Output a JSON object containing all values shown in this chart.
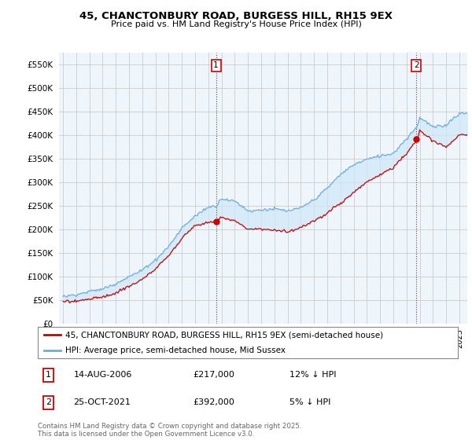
{
  "title": "45, CHANCTONBURY ROAD, BURGESS HILL, RH15 9EX",
  "subtitle": "Price paid vs. HM Land Registry's House Price Index (HPI)",
  "ytick_values": [
    0,
    50000,
    100000,
    150000,
    200000,
    250000,
    300000,
    350000,
    400000,
    450000,
    500000,
    550000
  ],
  "ylim": [
    0,
    575000
  ],
  "sale1_date": "14-AUG-2006",
  "sale1_price": 217000,
  "sale1_hpi": "12% ↓ HPI",
  "sale2_date": "25-OCT-2021",
  "sale2_price": 392000,
  "sale2_hpi": "5% ↓ HPI",
  "legend_property": "45, CHANCTONBURY ROAD, BURGESS HILL, RH15 9EX (semi-detached house)",
  "legend_hpi": "HPI: Average price, semi-detached house, Mid Sussex",
  "footer": "Contains HM Land Registry data © Crown copyright and database right 2025.\nThis data is licensed under the Open Government Licence v3.0.",
  "hpi_color": "#6aaee0",
  "price_color": "#cc0000",
  "fill_color": "#d0e8f8",
  "background_color": "#ffffff",
  "chart_bg_color": "#eef5fb",
  "grid_color": "#cccccc",
  "vline_color": "#cc0000"
}
